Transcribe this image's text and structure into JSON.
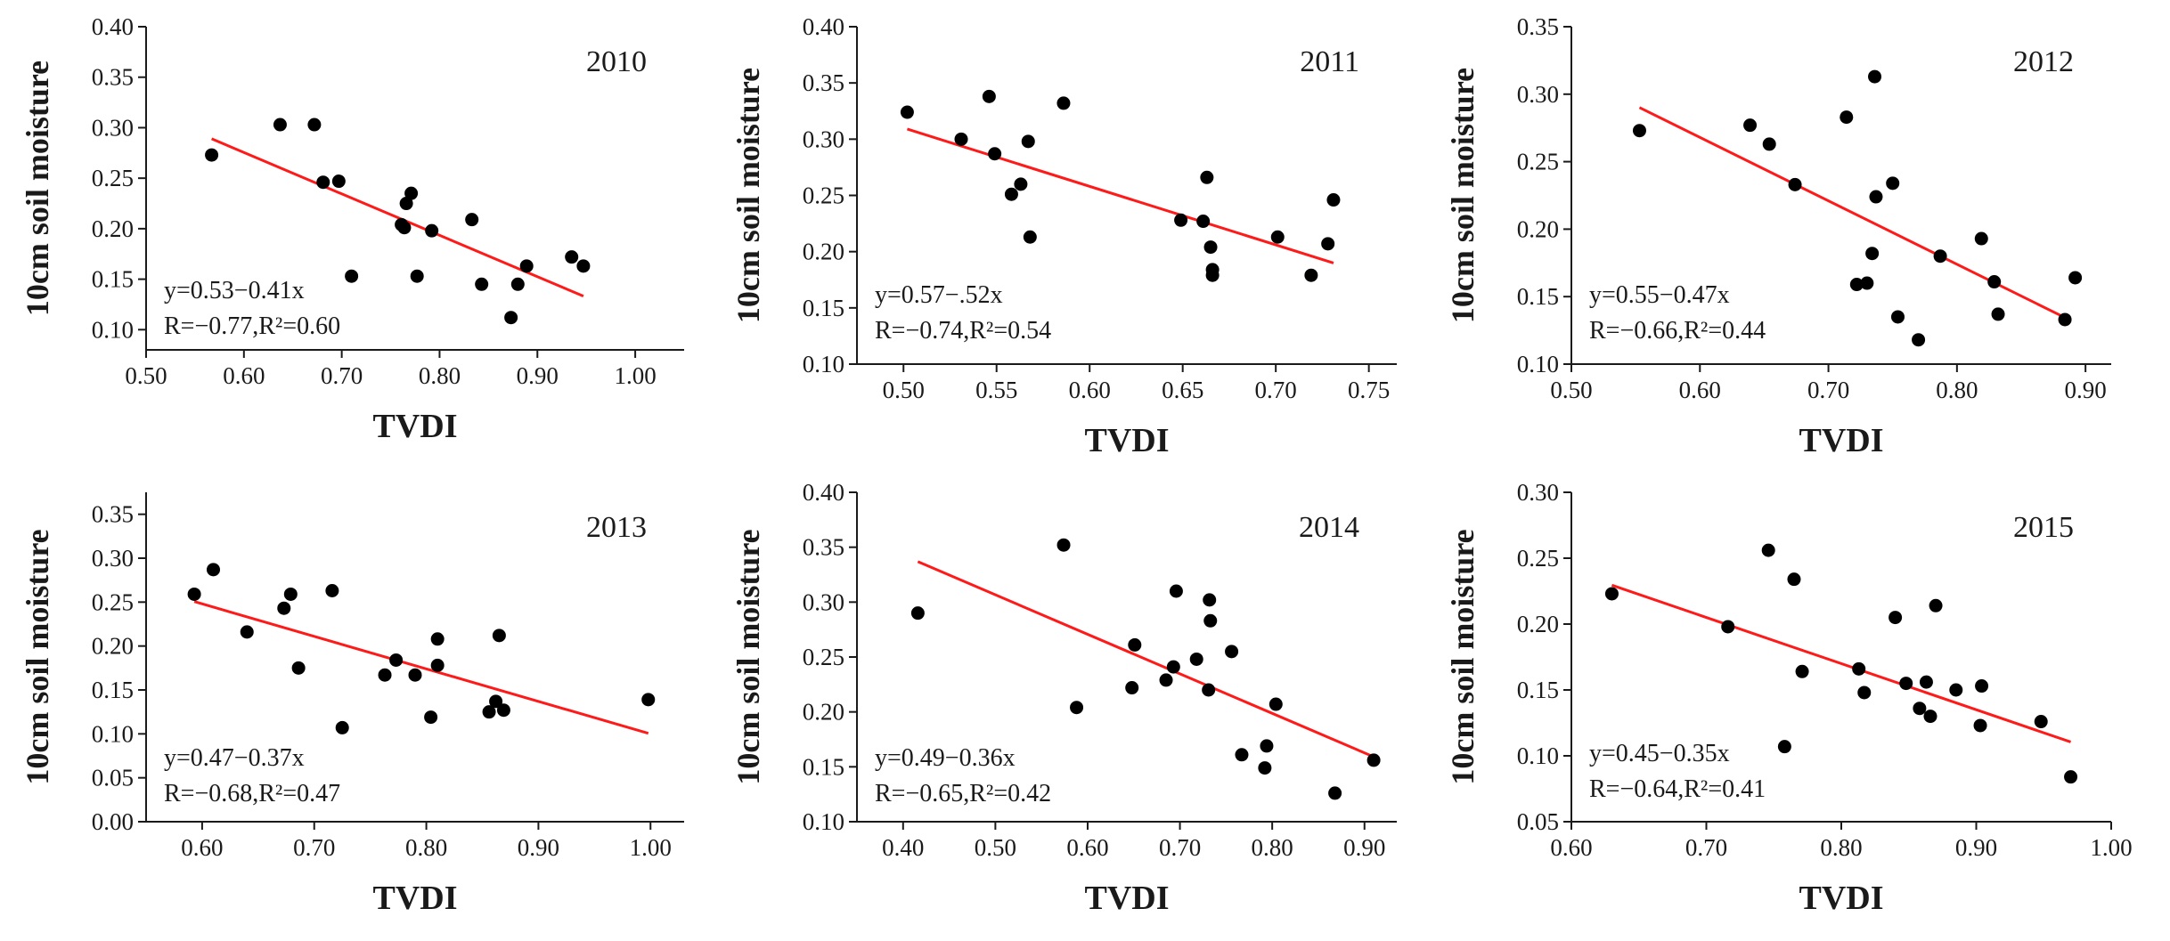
{
  "figure": {
    "x_axis_label": "TVDI",
    "y_axis_label": "10cm soil moisture",
    "fit_color": "#ff1a1a",
    "point_color": "#000000"
  },
  "chart_data": [
    {
      "type": "scatter",
      "title": "2010",
      "xlabel": "TVDI",
      "ylabel": "10cm soil moisture",
      "xlim": [
        0.5,
        1.05
      ],
      "ylim": [
        0.08,
        0.4
      ],
      "xticks": [
        0.5,
        0.6,
        0.7,
        0.8,
        0.9,
        1.0
      ],
      "xtick_labels": [
        "0.50",
        "0.60",
        "0.70",
        "0.80",
        "0.90",
        "1.00"
      ],
      "yticks": [
        0.1,
        0.15,
        0.2,
        0.25,
        0.3,
        0.35,
        0.4
      ],
      "ytick_labels": [
        "0.10",
        "0.15",
        "0.20",
        "0.25",
        "0.30",
        "0.35",
        "0.40"
      ],
      "x": [
        0.567,
        0.637,
        0.672,
        0.681,
        0.697,
        0.71,
        0.761,
        0.764,
        0.766,
        0.771,
        0.777,
        0.792,
        0.833,
        0.843,
        0.873,
        0.88,
        0.889,
        0.935,
        0.947
      ],
      "y": [
        0.273,
        0.303,
        0.303,
        0.246,
        0.247,
        0.153,
        0.204,
        0.201,
        0.225,
        0.235,
        0.153,
        0.198,
        0.209,
        0.145,
        0.112,
        0.145,
        0.163,
        0.172,
        0.163
      ],
      "fit": {
        "x": [
          0.567,
          0.947
        ],
        "y": [
          0.289,
          0.1332
        ]
      },
      "annotations": [
        "y=0.53−0.41x",
        "R=−0.77,R²=0.60"
      ]
    },
    {
      "type": "scatter",
      "title": "2011",
      "xlabel": "TVDI",
      "ylabel": "10cm soil moisture",
      "xlim": [
        0.475,
        0.765
      ],
      "ylim": [
        0.1,
        0.4
      ],
      "xticks": [
        0.5,
        0.55,
        0.6,
        0.65,
        0.7,
        0.75
      ],
      "xtick_labels": [
        "0.50",
        "0.55",
        "0.60",
        "0.65",
        "0.70",
        "0.75"
      ],
      "yticks": [
        0.1,
        0.15,
        0.2,
        0.25,
        0.3,
        0.35,
        0.4
      ],
      "ytick_labels": [
        "0.10",
        "0.15",
        "0.20",
        "0.25",
        "0.30",
        "0.35",
        "0.40"
      ],
      "x": [
        0.502,
        0.531,
        0.546,
        0.549,
        0.558,
        0.563,
        0.567,
        0.568,
        0.586,
        0.649,
        0.661,
        0.663,
        0.665,
        0.666,
        0.666,
        0.701,
        0.719,
        0.728,
        0.731
      ],
      "y": [
        0.324,
        0.3,
        0.338,
        0.287,
        0.251,
        0.26,
        0.298,
        0.213,
        0.332,
        0.228,
        0.227,
        0.266,
        0.204,
        0.184,
        0.179,
        0.213,
        0.179,
        0.207,
        0.246
      ],
      "fit": {
        "x": [
          0.502,
          0.731
        ],
        "y": [
          0.309,
          0.1899
        ]
      },
      "annotations": [
        "y=0.57−.52x",
        "R=−0.74,R²=0.54"
      ]
    },
    {
      "type": "scatter",
      "title": "2012",
      "xlabel": "TVDI",
      "ylabel": "10cm soil moisture",
      "xlim": [
        0.5,
        0.92
      ],
      "ylim": [
        0.1,
        0.35
      ],
      "xticks": [
        0.5,
        0.6,
        0.7,
        0.8,
        0.9
      ],
      "xtick_labels": [
        "0.50",
        "0.60",
        "0.70",
        "0.80",
        "0.90"
      ],
      "yticks": [
        0.1,
        0.15,
        0.2,
        0.25,
        0.3,
        0.35
      ],
      "ytick_labels": [
        "0.10",
        "0.15",
        "0.20",
        "0.25",
        "0.30",
        "0.35"
      ],
      "x": [
        0.553,
        0.639,
        0.654,
        0.674,
        0.714,
        0.722,
        0.73,
        0.734,
        0.736,
        0.737,
        0.75,
        0.754,
        0.77,
        0.787,
        0.819,
        0.829,
        0.832,
        0.884,
        0.892
      ],
      "y": [
        0.273,
        0.277,
        0.263,
        0.233,
        0.283,
        0.159,
        0.16,
        0.182,
        0.313,
        0.224,
        0.234,
        0.135,
        0.118,
        0.18,
        0.193,
        0.161,
        0.137,
        0.133,
        0.164
      ],
      "fit": {
        "x": [
          0.553,
          0.888
        ],
        "y": [
          0.2901,
          0.1326
        ]
      },
      "annotations": [
        "y=0.55−0.47x",
        "R=−0.66,R²=0.44"
      ]
    },
    {
      "type": "scatter",
      "title": "2013",
      "xlabel": "TVDI",
      "ylabel": "10cm soil moisture",
      "xlim": [
        0.55,
        1.03
      ],
      "ylim": [
        0.0,
        0.375
      ],
      "xticks": [
        0.6,
        0.7,
        0.8,
        0.9,
        1.0
      ],
      "xtick_labels": [
        "0.60",
        "0.70",
        "0.80",
        "0.90",
        "1.00"
      ],
      "yticks": [
        0.0,
        0.05,
        0.1,
        0.15,
        0.2,
        0.25,
        0.3,
        0.35
      ],
      "ytick_labels": [
        "0.00",
        "0.05",
        "0.10",
        "0.15",
        "0.20",
        "0.25",
        "0.30",
        "0.35"
      ],
      "x": [
        0.593,
        0.61,
        0.64,
        0.673,
        0.679,
        0.686,
        0.716,
        0.725,
        0.763,
        0.773,
        0.79,
        0.804,
        0.81,
        0.81,
        0.856,
        0.862,
        0.865,
        0.869,
        0.998
      ],
      "y": [
        0.259,
        0.287,
        0.216,
        0.243,
        0.259,
        0.175,
        0.263,
        0.107,
        0.167,
        0.184,
        0.167,
        0.119,
        0.178,
        0.208,
        0.125,
        0.137,
        0.212,
        0.127,
        0.139
      ],
      "fit": {
        "x": [
          0.593,
          0.998
        ],
        "y": [
          0.2506,
          0.1007
        ]
      },
      "annotations": [
        "y=0.47−0.37x",
        "R=−0.68,R²=0.47"
      ]
    },
    {
      "type": "scatter",
      "title": "2014",
      "xlabel": "TVDI",
      "ylabel": "10cm soil moisture",
      "xlim": [
        0.35,
        0.935
      ],
      "ylim": [
        0.1,
        0.4
      ],
      "xticks": [
        0.4,
        0.5,
        0.6,
        0.7,
        0.8,
        0.9
      ],
      "xtick_labels": [
        "0.40",
        "0.50",
        "0.60",
        "0.70",
        "0.80",
        "0.90"
      ],
      "yticks": [
        0.1,
        0.15,
        0.2,
        0.25,
        0.3,
        0.35,
        0.4
      ],
      "ytick_labels": [
        "0.10",
        "0.15",
        "0.20",
        "0.25",
        "0.30",
        "0.35",
        "0.40"
      ],
      "x": [
        0.416,
        0.574,
        0.588,
        0.648,
        0.651,
        0.685,
        0.693,
        0.696,
        0.718,
        0.731,
        0.732,
        0.733,
        0.756,
        0.767,
        0.792,
        0.794,
        0.804,
        0.868,
        0.91
      ],
      "y": [
        0.29,
        0.352,
        0.204,
        0.222,
        0.261,
        0.229,
        0.241,
        0.31,
        0.248,
        0.22,
        0.302,
        0.283,
        0.255,
        0.161,
        0.149,
        0.169,
        0.207,
        0.126,
        0.156
      ],
      "fit": {
        "x": [
          0.416,
          0.91
        ],
        "y": [
          0.3369,
          0.1591
        ]
      },
      "annotations": [
        "y=0.49−0.36x",
        "R=−0.65,R²=0.42"
      ]
    },
    {
      "type": "scatter",
      "title": "2015",
      "xlabel": "TVDI",
      "ylabel": "10cm soil moisture",
      "xlim": [
        0.6,
        1.0
      ],
      "ylim": [
        0.05,
        0.3
      ],
      "xticks": [
        0.6,
        0.7,
        0.8,
        0.9,
        1.0
      ],
      "xtick_labels": [
        "0.60",
        "0.70",
        "0.80",
        "0.90",
        "1.00"
      ],
      "yticks": [
        0.05,
        0.1,
        0.15,
        0.2,
        0.25,
        0.3
      ],
      "ytick_labels": [
        "0.05",
        "0.10",
        "0.15",
        "0.20",
        "0.25",
        "0.30"
      ],
      "x": [
        0.63,
        0.716,
        0.746,
        0.758,
        0.765,
        0.771,
        0.813,
        0.817,
        0.84,
        0.848,
        0.858,
        0.863,
        0.866,
        0.87,
        0.885,
        0.903,
        0.904,
        0.948,
        0.97
      ],
      "y": [
        0.223,
        0.198,
        0.256,
        0.107,
        0.234,
        0.164,
        0.166,
        0.148,
        0.205,
        0.155,
        0.136,
        0.156,
        0.13,
        0.214,
        0.15,
        0.123,
        0.153,
        0.126,
        0.084
      ],
      "fit": {
        "x": [
          0.63,
          0.97
        ],
        "y": [
          0.2295,
          0.1105
        ]
      },
      "annotations": [
        "y=0.45−0.35x",
        "R=−0.64,R²=0.41"
      ]
    }
  ]
}
